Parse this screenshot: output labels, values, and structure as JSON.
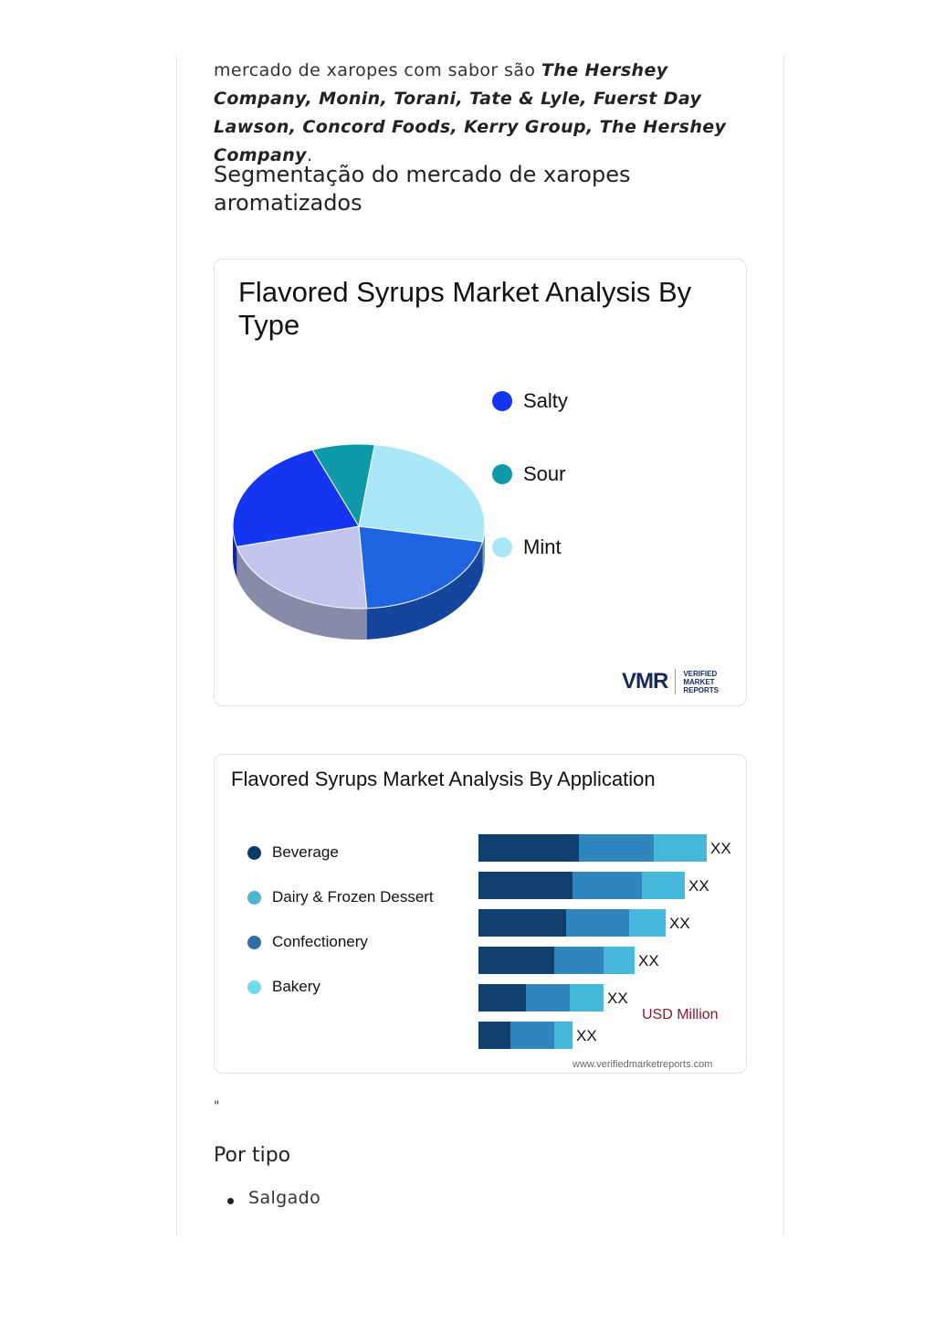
{
  "intro": {
    "prefix": "mercado de xaropes com sabor são ",
    "companies": "The Hershey Company, Monin, Torani, Tate & Lyle, Fuerst Day Lawson, Concord Foods, Kerry Group, The Hershey Company",
    "suffix": "."
  },
  "section_title": "Segmentação do mercado de xaropes aromatizados",
  "card_type": {
    "title": "Flavored Syrups Market Analysis By Type",
    "legend": [
      {
        "label": "Salty",
        "color": "#1436f0"
      },
      {
        "label": "Sour",
        "color": "#0e9aa8"
      },
      {
        "label": "Mint",
        "color": "#a9e6f7"
      }
    ],
    "logo": {
      "mark": "VMR",
      "line1": "VERIFIED",
      "line2": "MARKET",
      "line3": "REPORTS"
    }
  },
  "card_app": {
    "title": "Flavored Syrups Market Analysis By Application",
    "legend": [
      {
        "label": "Beverage",
        "color": "#0d3b66"
      },
      {
        "label": "Dairy & Frozen Dessert",
        "color": "#4fb3d3"
      },
      {
        "label": "Confectionery",
        "color": "#2f6ea3"
      },
      {
        "label": "Bakery",
        "color": "#6fdcec"
      }
    ],
    "unit": "USD Million",
    "website": "www.verifiedmarketreports.com"
  },
  "chart_data": [
    {
      "type": "pie",
      "title": "Flavored Syrups Market Analysis By Type",
      "categories": [
        "Salty",
        "Sour",
        "Mint"
      ],
      "slices": [
        {
          "label": "Sour",
          "value": 8,
          "color": "#0e9aa8"
        },
        {
          "label": "Mint",
          "value": 26,
          "color": "#a9e6f7"
        },
        {
          "label": "",
          "value": 21,
          "color": "#1e63e0"
        },
        {
          "label": "",
          "value": 22,
          "color": "#c2c6ef"
        },
        {
          "label": "Salty",
          "value": 23,
          "color": "#1436f0"
        }
      ],
      "legend_position": "right"
    },
    {
      "type": "bar",
      "orientation": "horizontal",
      "stacked": true,
      "title": "Flavored Syrups Market Analysis By Application",
      "unit": "USD Million",
      "series_colors": [
        "#12406e",
        "#2e86bd",
        "#45b8dc"
      ],
      "rows": [
        {
          "segments": [
            110,
            82,
            58
          ],
          "label": "XX"
        },
        {
          "segments": [
            103,
            76,
            47
          ],
          "label": "XX"
        },
        {
          "segments": [
            96,
            69,
            40
          ],
          "label": "XX"
        },
        {
          "segments": [
            83,
            54,
            34
          ],
          "label": "XX"
        },
        {
          "segments": [
            52,
            48,
            37
          ],
          "label": "XX"
        },
        {
          "segments": [
            35,
            48,
            20
          ],
          "label": "XX"
        }
      ],
      "legend_position": "left",
      "grid": false
    }
  ],
  "after": {
    "quote": "\"",
    "subheading": "Por tipo",
    "bullets": [
      "Salgado"
    ]
  }
}
